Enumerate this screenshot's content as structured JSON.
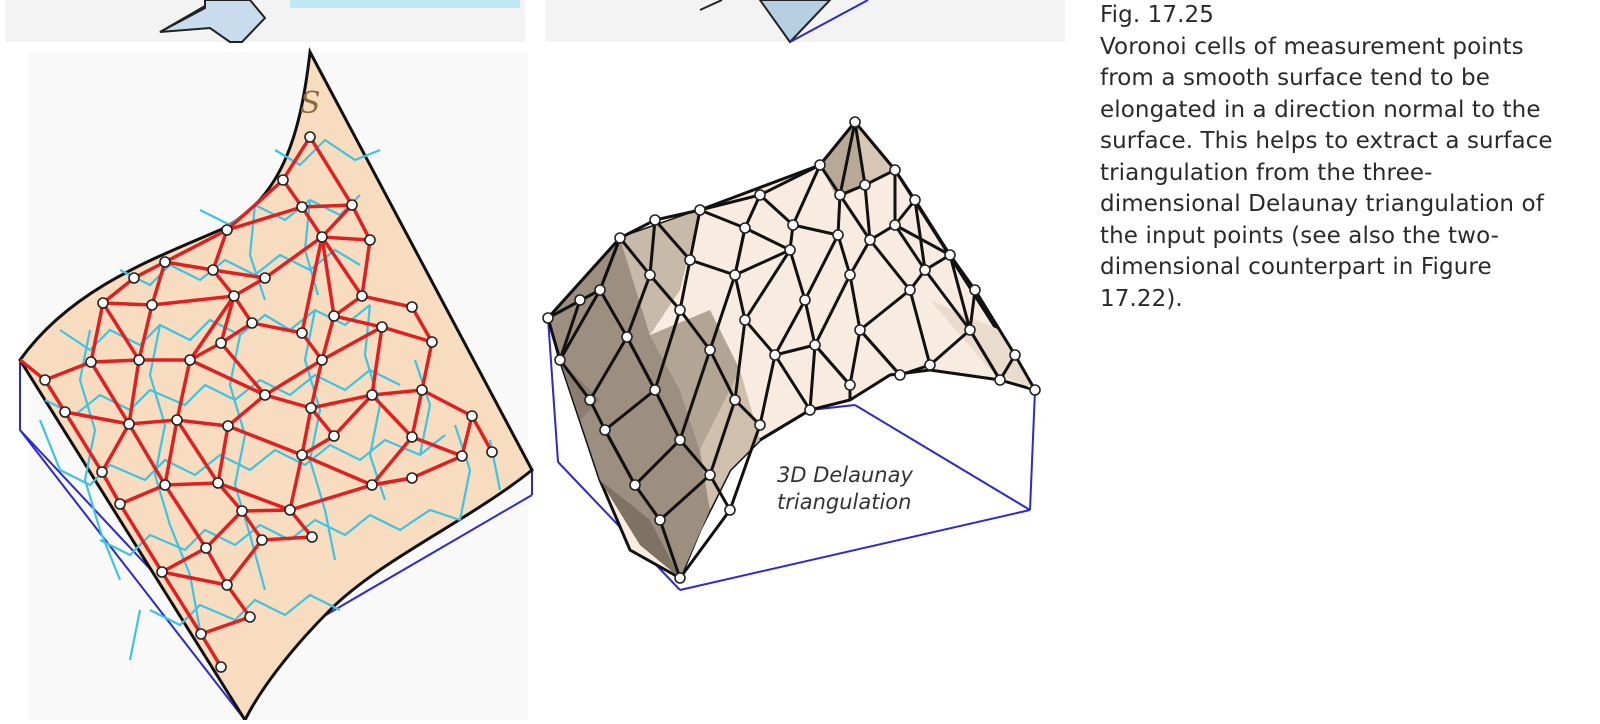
{
  "caption": {
    "number": "Fig. 17.25",
    "text": "Voronoi cells of measurement points from a smooth surface tend to be elongated in a direction normal to the surface. This helps to extract a surface triangulation from the three-dimensional Delaunay triangulation of the input points (see also the two-dimensional counterpart in Figure 17.22)."
  },
  "left_panel": {
    "surface_label": "S"
  },
  "right_panel": {
    "label_line1": "3D Delaunay",
    "label_line2": "triangulation"
  },
  "colors": {
    "surface_fill": "#f7dcc0",
    "voronoi": "#3ec3e0",
    "delaunay_left": "#e02020",
    "box_edges": "#2a2ad0",
    "mesh_edges": "#111111",
    "shade_dark": "#8d8070",
    "shade_light": "#f8ece0"
  }
}
